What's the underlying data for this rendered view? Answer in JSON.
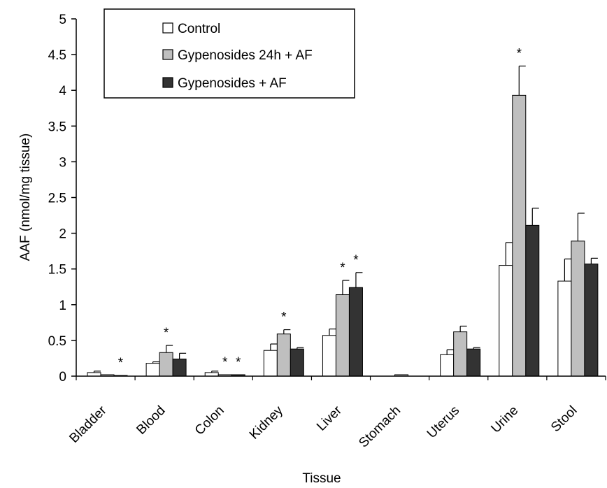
{
  "chart_data": {
    "type": "bar",
    "title": "",
    "xlabel": "Tissue",
    "ylabel": "AAF (nmol/mg tissue)",
    "ylim": [
      0,
      5
    ],
    "yticks": [
      "0",
      "0.5",
      "1",
      "1.5",
      "2",
      "2.5",
      "3",
      "3.5",
      "4",
      "4.5",
      "5"
    ],
    "categories": [
      "Bladder",
      "Blood",
      "Colon",
      "Kidney",
      "Liver",
      "Stomach",
      "Uterus",
      "Urine",
      "Stool"
    ],
    "series": [
      {
        "name": "Control",
        "color": "#ffffff",
        "values": [
          0.05,
          0.18,
          0.05,
          0.36,
          0.57,
          0.0,
          0.3,
          1.55,
          1.33
        ],
        "errors": [
          0.02,
          0.02,
          0.02,
          0.09,
          0.09,
          0.0,
          0.07,
          0.32,
          0.31
        ]
      },
      {
        "name": "Gypenosides 24h + AF",
        "color": "#bfbfbf",
        "values": [
          0.02,
          0.33,
          0.02,
          0.59,
          1.14,
          0.02,
          0.62,
          3.93,
          1.89
        ],
        "errors": [
          0.0,
          0.1,
          0.0,
          0.06,
          0.2,
          0.0,
          0.08,
          0.41,
          0.39
        ]
      },
      {
        "name": "Gypenosides + AF",
        "color": "#333333",
        "values": [
          0.01,
          0.24,
          0.02,
          0.38,
          1.24,
          0.0,
          0.38,
          2.11,
          1.57
        ],
        "errors": [
          0.0,
          0.08,
          0.0,
          0.02,
          0.21,
          0.0,
          0.02,
          0.24,
          0.08
        ]
      }
    ],
    "annotations": [
      {
        "text": "*",
        "category": "Bladder",
        "series": 2
      },
      {
        "text": "*",
        "category": "Blood",
        "series": 1
      },
      {
        "text": "*",
        "category": "Colon",
        "series": 1
      },
      {
        "text": "*",
        "category": "Colon",
        "series": 2
      },
      {
        "text": "*",
        "category": "Kidney",
        "series": 1
      },
      {
        "text": "*",
        "category": "Liver",
        "series": 1
      },
      {
        "text": "*",
        "category": "Liver",
        "series": 2
      },
      {
        "text": "*",
        "category": "Urine",
        "series": 1
      }
    ],
    "legend_position": "top-left",
    "grid": false
  }
}
